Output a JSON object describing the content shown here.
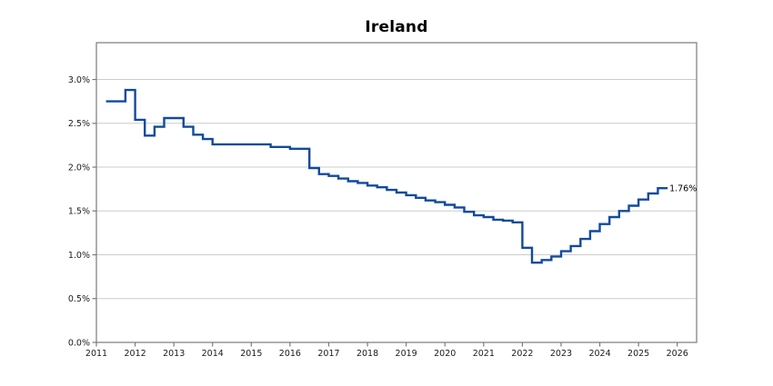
{
  "window": {
    "background": "#ffffff"
  },
  "chart_data": {
    "type": "line",
    "step": "post",
    "title": "Ireland",
    "xlabel": "",
    "ylabel": "",
    "legend": "none",
    "grid": "horizontal",
    "line_color": "#134a9c",
    "grid_color": "#cccccc",
    "axis_color": "#7a7a7a",
    "text_color": "#1a1a1a",
    "xlim": [
      2011,
      2026.5
    ],
    "ylim": [
      0,
      3.42
    ],
    "x_ticks": [
      {
        "value": 2011,
        "label": "2011"
      },
      {
        "value": 2012,
        "label": "2012"
      },
      {
        "value": 2013,
        "label": "2013"
      },
      {
        "value": 2014,
        "label": "2014"
      },
      {
        "value": 2015,
        "label": "2015"
      },
      {
        "value": 2016,
        "label": "2016"
      },
      {
        "value": 2017,
        "label": "2017"
      },
      {
        "value": 2018,
        "label": "2018"
      },
      {
        "value": 2019,
        "label": "2019"
      },
      {
        "value": 2020,
        "label": "2020"
      },
      {
        "value": 2021,
        "label": "2021"
      },
      {
        "value": 2022,
        "label": "2022"
      },
      {
        "value": 2023,
        "label": "2023"
      },
      {
        "value": 2024,
        "label": "2024"
      },
      {
        "value": 2025,
        "label": "2025"
      },
      {
        "value": 2026,
        "label": "2026"
      }
    ],
    "y_ticks": [
      {
        "value": 0.0,
        "label": "0.0%"
      },
      {
        "value": 0.5,
        "label": "0.5%"
      },
      {
        "value": 1.0,
        "label": "1.0%"
      },
      {
        "value": 1.5,
        "label": "1.5%"
      },
      {
        "value": 2.0,
        "label": "2.0%"
      },
      {
        "value": 2.5,
        "label": "2.5%"
      },
      {
        "value": 3.0,
        "label": "3.0%"
      }
    ],
    "x": [
      2011.25,
      2011.5,
      2011.75,
      2012.0,
      2012.25,
      2012.5,
      2012.75,
      2013.0,
      2013.25,
      2013.5,
      2013.75,
      2014.0,
      2014.25,
      2014.5,
      2014.75,
      2015.0,
      2015.25,
      2015.5,
      2015.75,
      2016.0,
      2016.25,
      2016.5,
      2016.75,
      2017.0,
      2017.25,
      2017.5,
      2017.75,
      2018.0,
      2018.25,
      2018.5,
      2018.75,
      2019.0,
      2019.25,
      2019.5,
      2019.75,
      2020.0,
      2020.25,
      2020.5,
      2020.75,
      2021.0,
      2021.25,
      2021.5,
      2021.75,
      2022.0,
      2022.25,
      2022.5,
      2022.75,
      2023.0,
      2023.25,
      2023.5,
      2023.75,
      2024.0,
      2024.25,
      2024.5,
      2024.75,
      2025.0,
      2025.25,
      2025.5
    ],
    "y": [
      2.75,
      2.75,
      2.88,
      2.54,
      2.36,
      2.46,
      2.56,
      2.56,
      2.46,
      2.37,
      2.32,
      2.26,
      2.26,
      2.26,
      2.26,
      2.26,
      2.26,
      2.23,
      2.23,
      2.21,
      2.21,
      1.99,
      1.92,
      1.9,
      1.87,
      1.84,
      1.82,
      1.79,
      1.77,
      1.74,
      1.71,
      1.68,
      1.65,
      1.62,
      1.6,
      1.57,
      1.54,
      1.49,
      1.45,
      1.43,
      1.4,
      1.39,
      1.37,
      1.08,
      0.91,
      0.94,
      0.98,
      1.04,
      1.1,
      1.18,
      1.27,
      1.35,
      1.43,
      1.5,
      1.56,
      1.63,
      1.7,
      1.76
    ],
    "x_end": 2025.75,
    "end_label": "1.76%"
  }
}
